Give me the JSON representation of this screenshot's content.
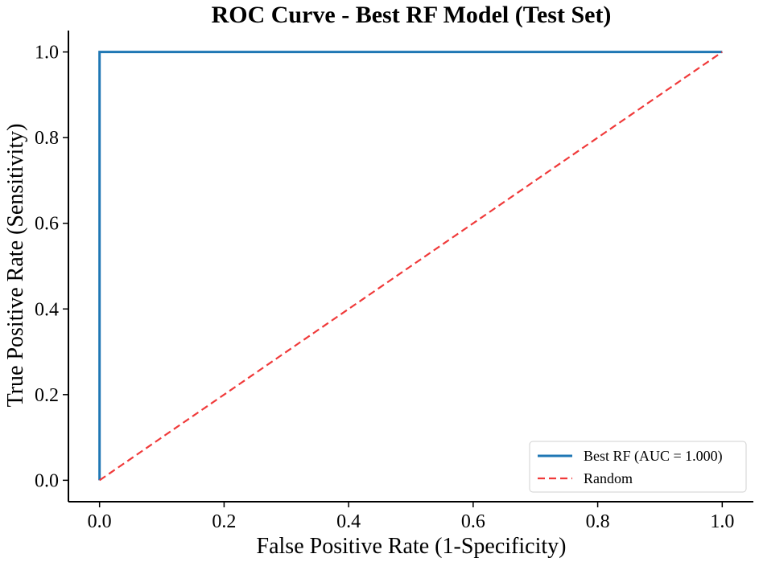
{
  "chart_data": {
    "type": "line",
    "title": "ROC Curve - Best RF Model (Test Set)",
    "xlabel": "False Positive Rate (1-Specificity)",
    "ylabel": "True Positive Rate (Sensitivity)",
    "xlim": [
      -0.05,
      1.05
    ],
    "ylim": [
      -0.05,
      1.05
    ],
    "xticks": [
      0.0,
      0.2,
      0.4,
      0.6,
      0.8,
      1.0
    ],
    "yticks": [
      0.0,
      0.2,
      0.4,
      0.6,
      0.8,
      1.0
    ],
    "tick_labels_x": [
      "0.0",
      "0.2",
      "0.4",
      "0.6",
      "0.8",
      "1.0"
    ],
    "tick_labels_y": [
      "0.0",
      "0.2",
      "0.4",
      "0.6",
      "0.8",
      "1.0"
    ],
    "grid": false,
    "legend_position": "lower-right",
    "series": [
      {
        "name": "Best RF (AUC = 1.000)",
        "color": "#1f77b4",
        "style": "solid",
        "x": [
          0.0,
          0.0,
          1.0
        ],
        "y": [
          0.0,
          1.0,
          1.0
        ]
      },
      {
        "name": "Random",
        "color": "#f03a3a",
        "style": "dashed",
        "x": [
          0.0,
          1.0
        ],
        "y": [
          0.0,
          1.0
        ]
      }
    ]
  }
}
